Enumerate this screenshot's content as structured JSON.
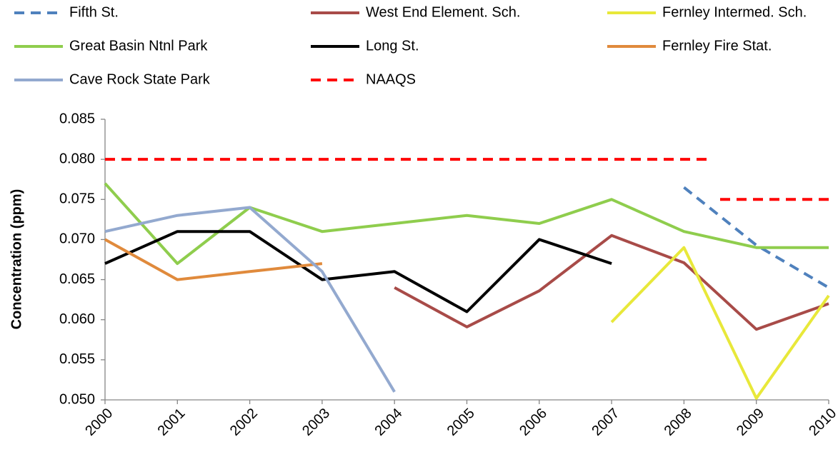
{
  "chart_data": {
    "type": "line",
    "y_label": "Concentration (ppm)",
    "x": [
      2000,
      2001,
      2002,
      2003,
      2004,
      2005,
      2006,
      2007,
      2008,
      2009,
      2010
    ],
    "xlim": [
      2000,
      2010
    ],
    "xticks": [
      2000,
      2001,
      2002,
      2003,
      2004,
      2005,
      2006,
      2007,
      2008,
      2009,
      2010
    ],
    "ylim": [
      0.05,
      0.085
    ],
    "yticks": [
      {
        "value": 0.05,
        "label": "0.050"
      },
      {
        "value": 0.055,
        "label": "0.055"
      },
      {
        "value": 0.06,
        "label": "0.060"
      },
      {
        "value": 0.065,
        "label": "0.065"
      },
      {
        "value": 0.07,
        "label": "0.070"
      },
      {
        "value": 0.075,
        "label": "0.075"
      },
      {
        "value": 0.08,
        "label": "0.080"
      },
      {
        "value": 0.085,
        "label": "0.085"
      }
    ],
    "grid": false,
    "legend": "top",
    "series": [
      {
        "name": "Fifth St.",
        "color": "#4f81bd",
        "dash": true,
        "values": [
          null,
          null,
          null,
          null,
          null,
          null,
          null,
          null,
          0.0765,
          0.0693,
          0.064
        ]
      },
      {
        "name": "West End Element. Sch.",
        "color": "#a84b48",
        "dash": false,
        "values": [
          null,
          null,
          null,
          null,
          0.064,
          0.0591,
          0.0636,
          0.0705,
          0.0671,
          0.0588,
          0.062
        ]
      },
      {
        "name": "Fernley Intermed. Sch.",
        "color": "#e8e83a",
        "dash": false,
        "values": [
          null,
          null,
          null,
          null,
          null,
          null,
          null,
          0.0597,
          0.069,
          0.0502,
          0.063
        ]
      },
      {
        "name": "Great Basin Ntnl Park",
        "color": "#8fcd4d",
        "dash": false,
        "values": [
          0.077,
          0.067,
          0.074,
          0.071,
          0.072,
          0.073,
          0.072,
          0.075,
          0.071,
          0.069,
          0.069
        ]
      },
      {
        "name": "Long St.",
        "color": "#000000",
        "dash": false,
        "values": [
          0.067,
          0.071,
          0.071,
          0.065,
          0.066,
          0.061,
          0.07,
          0.067,
          null,
          null,
          null
        ]
      },
      {
        "name": "Fernley Fire Stat.",
        "color": "#e08a3c",
        "dash": false,
        "values": [
          0.07,
          0.065,
          0.066,
          0.067,
          null,
          null,
          null,
          null,
          null,
          null,
          null
        ]
      },
      {
        "name": "Cave Rock State Park",
        "color": "#93a9cf",
        "dash": false,
        "values": [
          0.071,
          0.073,
          0.074,
          0.066,
          0.051,
          null,
          null,
          null,
          null,
          null,
          null
        ]
      },
      {
        "name": "NAAQS",
        "color": "#ff0000",
        "dash": true,
        "x": [
          2000,
          2008.4,
          2008.4,
          2008.5,
          2010
        ],
        "values": [
          0.08,
          0.08,
          null,
          0.075,
          0.075
        ]
      }
    ]
  }
}
